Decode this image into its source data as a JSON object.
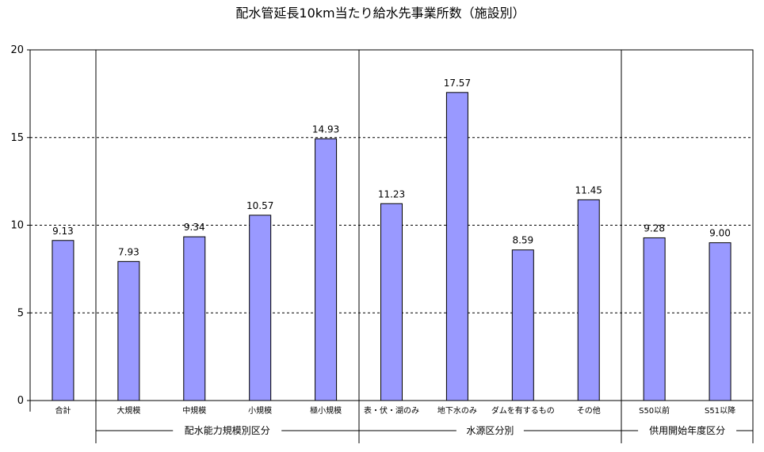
{
  "chart_data": {
    "type": "bar",
    "title": "配水管延長10km当たり給水先事業所数（施設別）",
    "xlabel": "",
    "ylabel": "",
    "ylim": [
      0,
      20
    ],
    "yticks": [
      0,
      5,
      10,
      15,
      20
    ],
    "grid": true,
    "legend": "none",
    "bar_color": "#9999ff",
    "categories": [
      "合計",
      "大規模",
      "中規模",
      "小規模",
      "極小規模",
      "表・伏・湖のみ",
      "地下水のみ",
      "ダムを有するもの",
      "その他",
      "S50以前",
      "S51以降"
    ],
    "values": [
      9.13,
      7.93,
      9.34,
      10.57,
      14.93,
      11.23,
      17.57,
      8.59,
      11.45,
      9.28,
      9.0
    ],
    "value_labels": [
      "9.13",
      "7.93",
      "9.34",
      "10.57",
      "14.93",
      "11.23",
      "17.57",
      "8.59",
      "11.45",
      "9.28",
      "9.00"
    ],
    "groups": [
      {
        "label": "配水能力規模別区分",
        "categories": [
          "大規模",
          "中規模",
          "小規模",
          "極小規模"
        ]
      },
      {
        "label": "水源区分別",
        "categories": [
          "表・伏・湖のみ",
          "地下水のみ",
          "ダムを有するもの",
          "その他"
        ]
      },
      {
        "label": "供用開始年度区分",
        "categories": [
          "S50以前",
          "S51以降"
        ]
      }
    ]
  }
}
